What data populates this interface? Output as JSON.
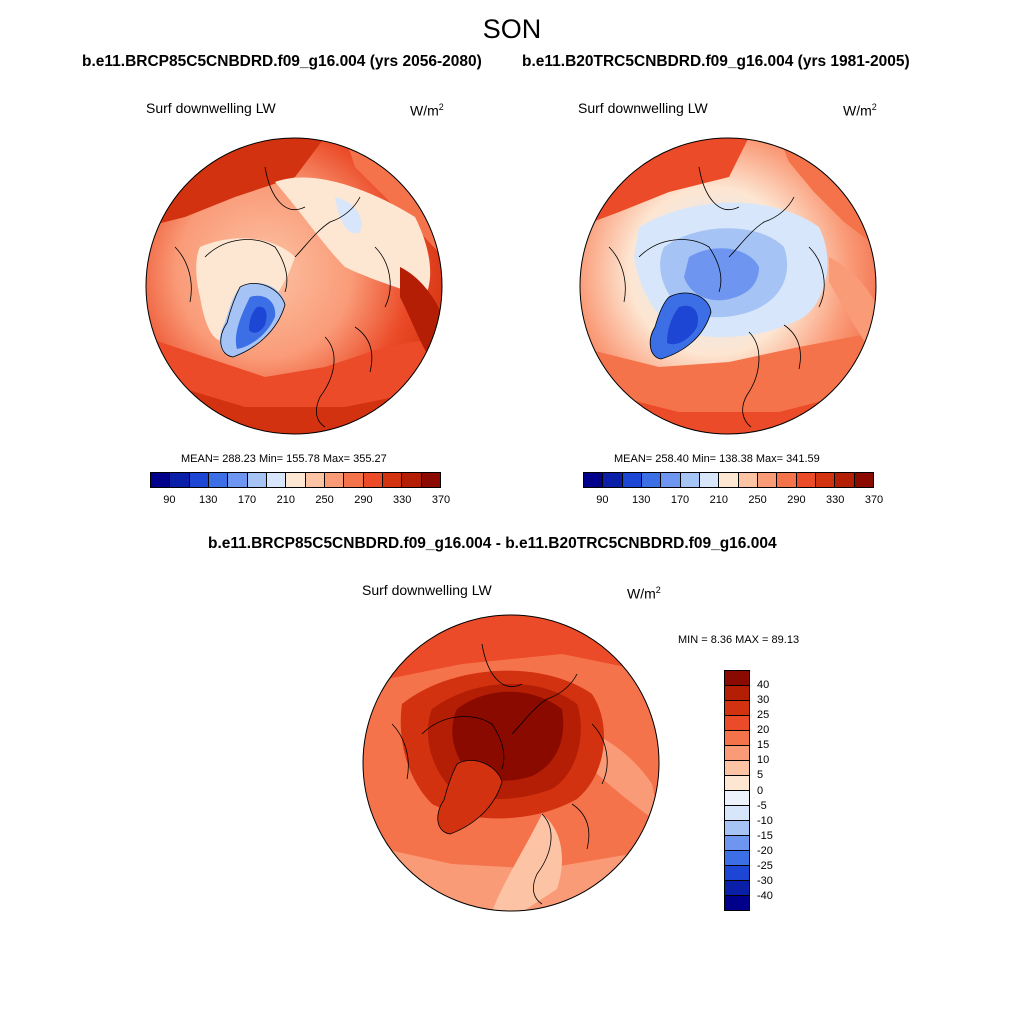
{
  "title": "SON",
  "panels": [
    {
      "case": "b.e11.BRCP85C5CNBDRD.f09_g16.004 (yrs 2056-2080)",
      "variable": "Surf downwelling LW",
      "units_base": "W/m",
      "units_exp": "2",
      "stats": "MEAN= 288.23  Min= 155.78  Max= 355.27",
      "colorbar_labels": [
        "90",
        "130",
        "170",
        "210",
        "250",
        "290",
        "330",
        "370"
      ]
    },
    {
      "case": "b.e11.B20TRC5CNBDRD.f09_g16.004 (yrs 1981-2005)",
      "variable": "Surf downwelling LW",
      "units_base": "W/m",
      "units_exp": "2",
      "stats": "MEAN= 258.40  Min= 138.38  Max= 341.59",
      "colorbar_labels": [
        "90",
        "130",
        "170",
        "210",
        "250",
        "290",
        "330",
        "370"
      ]
    }
  ],
  "diff": {
    "case": "b.e11.BRCP85C5CNBDRD.f09_g16.004 - b.e11.B20TRC5CNBDRD.f09_g16.004",
    "variable": "Surf downwelling LW",
    "units_base": "W/m",
    "units_exp": "2",
    "stats": "MIN =   8.36 MAX =  89.13",
    "colorbar_labels": [
      "40",
      "30",
      "25",
      "20",
      "15",
      "10",
      "5",
      "0",
      "-5",
      "-10",
      "-15",
      "-20",
      "-25",
      "-30",
      "-40"
    ]
  },
  "colors": {
    "abs_scale": [
      "#00008b",
      "#0a1fa8",
      "#1e46d4",
      "#3c6ee6",
      "#6e96f0",
      "#a5c3f5",
      "#d7e6fa",
      "#fde6d2",
      "#fcc3a5",
      "#fa9b78",
      "#f5734b",
      "#eb4b28",
      "#d2320f",
      "#b41e05",
      "#8b0a00"
    ],
    "diff_scale": [
      "#8b0a00",
      "#b41e05",
      "#d2320f",
      "#eb4b28",
      "#f5734b",
      "#fa9b78",
      "#fcc3a5",
      "#fde6d2",
      "#eef3fb",
      "#d7e6fa",
      "#a5c3f5",
      "#6e96f0",
      "#3c6ee6",
      "#1e46d4",
      "#0a1fa8",
      "#00008b"
    ]
  }
}
